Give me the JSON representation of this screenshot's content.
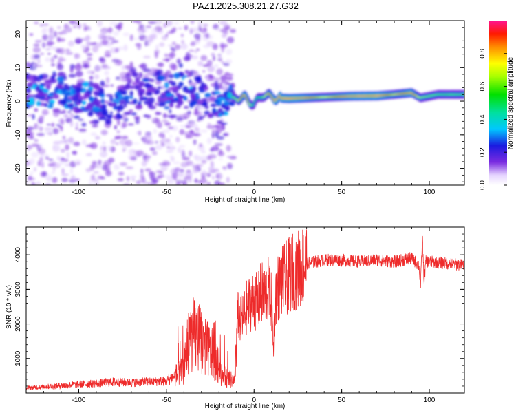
{
  "title": "PAZ1.2025.308.21.27.G32",
  "colors": {
    "snr_line": "#ee2b2b",
    "axis": "#000000",
    "background": "#ffffff"
  },
  "chart_data": [
    {
      "type": "heatmap",
      "xlabel": "Height of straight line (km)",
      "ylabel": "Frequency (Hz)",
      "xlim": [
        -130,
        120
      ],
      "ylim": [
        -25,
        24
      ],
      "x_ticks": [
        -100,
        -50,
        0,
        50,
        100
      ],
      "x_tick_labels": [
        "-100",
        "-50",
        "0",
        "50",
        "100"
      ],
      "y_ticks": [
        -20,
        -10,
        0,
        10,
        20
      ],
      "y_tick_labels": [
        "-20",
        "-10",
        "0",
        "10",
        "20"
      ],
      "colorbar": {
        "label": "Normalized spectral amplitude",
        "range": [
          0,
          1
        ],
        "ticks": [
          0.0,
          0.2,
          0.4,
          0.6,
          0.8
        ],
        "tick_labels": [
          "0.0",
          "0.2",
          "0.4",
          "0.6",
          "0.8"
        ]
      },
      "ridge": [
        {
          "x": -120,
          "f": 3,
          "a": 0.45
        },
        {
          "x": -105,
          "f": 2,
          "a": 0.35
        },
        {
          "x": -90,
          "f": 0,
          "a": 0.4
        },
        {
          "x": -80,
          "f": -3,
          "a": 0.35
        },
        {
          "x": -70,
          "f": 2,
          "a": 0.3
        },
        {
          "x": -50,
          "f": 3,
          "a": 0.35
        },
        {
          "x": -40,
          "f": 4,
          "a": 0.3
        },
        {
          "x": -30,
          "f": 2,
          "a": 0.3
        },
        {
          "x": -20,
          "f": -2,
          "a": 0.35
        },
        {
          "x": -10,
          "f": 1,
          "a": 0.55
        },
        {
          "x": -5,
          "f": 1,
          "a": 0.9
        },
        {
          "x": 0,
          "f": -1,
          "a": 0.4
        },
        {
          "x": 5,
          "f": 2,
          "a": 0.5
        },
        {
          "x": 12,
          "f": 1,
          "a": 0.95
        },
        {
          "x": 20,
          "f": 0.8,
          "a": 1.0
        },
        {
          "x": 30,
          "f": 1,
          "a": 0.85
        },
        {
          "x": 40,
          "f": 1.2,
          "a": 0.6
        },
        {
          "x": 55,
          "f": 1.5,
          "a": 0.9
        },
        {
          "x": 70,
          "f": 1.6,
          "a": 1.0
        },
        {
          "x": 80,
          "f": 2,
          "a": 0.65
        },
        {
          "x": 90,
          "f": 2.5,
          "a": 0.9
        },
        {
          "x": 95,
          "f": 1,
          "a": 0.55
        },
        {
          "x": 105,
          "f": 2,
          "a": 0.5
        },
        {
          "x": 120,
          "f": 2,
          "a": 0.5
        }
      ]
    },
    {
      "type": "line",
      "xlabel": "Height of straight line (km)",
      "ylabel": "SNR (10 * v/v)",
      "xlim": [
        -130,
        120
      ],
      "ylim": [
        0,
        4800
      ],
      "x_ticks": [
        -100,
        -50,
        0,
        50,
        100
      ],
      "x_tick_labels": [
        "-100",
        "-50",
        "0",
        "50",
        "100"
      ],
      "y_ticks": [
        1000,
        2000,
        3000,
        4000
      ],
      "y_tick_labels": [
        "1000",
        "2000",
        "3000",
        "4000"
      ],
      "series": [
        {
          "name": "SNR",
          "x": [
            -130,
            -120,
            -110,
            -100,
            -90,
            -80,
            -70,
            -60,
            -50,
            -45,
            -40,
            -38,
            -35,
            -32,
            -30,
            -28,
            -25,
            -22,
            -20,
            -18,
            -15,
            -13,
            -11,
            -10,
            -9,
            -8,
            -6,
            -4,
            -2,
            0,
            2,
            4,
            6,
            8,
            10,
            11,
            12,
            13,
            14,
            16,
            18,
            20,
            22,
            25,
            28,
            30,
            35,
            40,
            45,
            50,
            60,
            70,
            80,
            90,
            94,
            95,
            96,
            97,
            98,
            100,
            110,
            120
          ],
          "values": [
            150,
            180,
            220,
            250,
            280,
            320,
            300,
            330,
            350,
            500,
            650,
            1400,
            1700,
            1600,
            1500,
            1300,
            1200,
            1000,
            700,
            500,
            400,
            380,
            300,
            1800,
            2300,
            2100,
            2200,
            2500,
            2600,
            2700,
            2600,
            2900,
            2800,
            3000,
            2600,
            1200,
            2800,
            3000,
            3100,
            3200,
            3300,
            3400,
            3500,
            3600,
            3700,
            3750,
            3800,
            3850,
            3850,
            3850,
            3800,
            3850,
            3800,
            3900,
            3700,
            3100,
            4500,
            3200,
            3800,
            3800,
            3750,
            3700
          ]
        }
      ]
    }
  ]
}
